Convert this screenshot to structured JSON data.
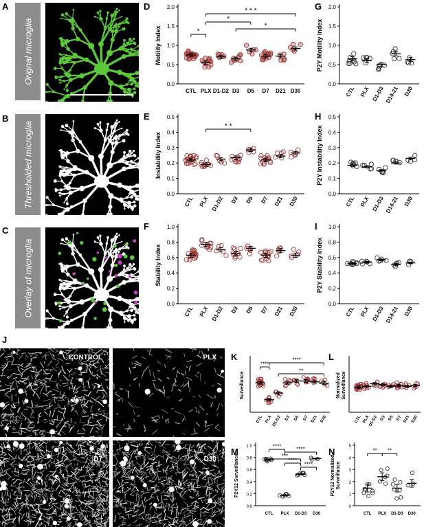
{
  "panel_labels": {
    "A": "A",
    "B": "B",
    "C": "C",
    "D": "D",
    "E": "E",
    "F": "F",
    "G": "G",
    "H": "H",
    "I": "I",
    "J": "J",
    "K": "K",
    "L": "L",
    "M": "M",
    "N": "N"
  },
  "image_panels": {
    "a_caption": "Orignal microglia",
    "b_caption": "Thresholded microglia",
    "c_caption": "Overlay of microglia",
    "colors": {
      "original": "#5cc93c",
      "thresholded": "#ffffff",
      "overlay_magenta": "#c040c0"
    }
  },
  "micrograph_labels": {
    "control": "CONTROL",
    "plx": "PLX",
    "d7": "D7",
    "d30": "D30"
  },
  "chart_data": [
    {
      "id": "D",
      "type": "scatter",
      "ylabel": "Motility Index",
      "ylim": [
        0,
        2.0
      ],
      "yticks": [
        0,
        0.5,
        1.0,
        1.5,
        2.0
      ],
      "tick_decimals": 1,
      "categories": [
        "CTL",
        "PLX",
        "D1-D2",
        "D3",
        "D5",
        "D7",
        "D21",
        "D30"
      ],
      "means": [
        0.75,
        0.55,
        0.7,
        0.65,
        0.88,
        0.72,
        0.72,
        0.92
      ],
      "point_color": "#a03c3c",
      "filled": true,
      "sig": [
        {
          "a": 0,
          "b": 1,
          "label": "*"
        },
        {
          "a": 1,
          "b": 7,
          "label": "* * *"
        },
        {
          "a": 1,
          "b": 4,
          "label": "*"
        },
        {
          "a": 3,
          "b": 7,
          "label": "*"
        }
      ]
    },
    {
      "id": "E",
      "type": "scatter",
      "ylabel": "Instability Index",
      "ylim": [
        0,
        0.5
      ],
      "yticks": [
        0,
        0.1,
        0.2,
        0.3,
        0.4,
        0.5
      ],
      "tick_decimals": 1,
      "categories": [
        "CTL",
        "PLX",
        "D1-D2",
        "D3",
        "D5",
        "D7",
        "D21",
        "D30"
      ],
      "means": [
        0.22,
        0.19,
        0.225,
        0.235,
        0.285,
        0.22,
        0.245,
        0.265
      ],
      "point_color": "#a03c3c",
      "filled": false,
      "sig": [
        {
          "a": 1,
          "b": 4,
          "label": "* *"
        }
      ]
    },
    {
      "id": "F",
      "type": "scatter",
      "ylabel": "Stability Index",
      "ylim": [
        0,
        1.0
      ],
      "yticks": [
        0,
        0.2,
        0.4,
        0.6,
        0.8,
        1.0
      ],
      "tick_decimals": 1,
      "categories": [
        "CTL",
        "PLX",
        "D1-D2",
        "D3",
        "D5",
        "D7",
        "D21",
        "D30"
      ],
      "means": [
        0.63,
        0.77,
        0.7,
        0.65,
        0.72,
        0.63,
        0.69,
        0.63
      ],
      "point_color": "#a03c3c",
      "filled": false,
      "sig": []
    },
    {
      "id": "G",
      "type": "scatter",
      "ylabel": "P2Y Motility Index",
      "ylim": [
        0,
        2.0
      ],
      "yticks": [
        0,
        0.5,
        1.0,
        1.5,
        2.0
      ],
      "tick_decimals": 1,
      "categories": [
        "CTL",
        "PLX",
        "D1-D3",
        "D14-21",
        "D30"
      ],
      "means": [
        0.65,
        0.6,
        0.5,
        0.78,
        0.63
      ],
      "point_color": "#333333",
      "filled": false,
      "sig": []
    },
    {
      "id": "H",
      "type": "scatter",
      "ylabel": "P2Y Instability Index",
      "ylim": [
        0,
        0.5
      ],
      "yticks": [
        0,
        0.1,
        0.2,
        0.3,
        0.4,
        0.5
      ],
      "tick_decimals": 1,
      "categories": [
        "CTL",
        "PLX",
        "D1-D3",
        "D14-21",
        "D30"
      ],
      "means": [
        0.185,
        0.175,
        0.15,
        0.2,
        0.23
      ],
      "point_color": "#333333",
      "filled": false,
      "sig": []
    },
    {
      "id": "I",
      "type": "scatter",
      "ylabel": "P2Y Stability Index",
      "ylim": [
        0,
        1.0
      ],
      "yticks": [
        0,
        0.2,
        0.4,
        0.6,
        0.8,
        1.0
      ],
      "tick_decimals": 1,
      "categories": [
        "CTL",
        "PLX",
        "D1-D3",
        "D14-21",
        "D30"
      ],
      "means": [
        0.52,
        0.54,
        0.57,
        0.51,
        0.53
      ],
      "point_color": "#333333",
      "filled": false,
      "sig": []
    },
    {
      "id": "K",
      "type": "scatter",
      "ylabel": "Surveillance",
      "ylim": [
        0,
        1.2
      ],
      "yticks": [],
      "tick_decimals": 1,
      "categories": [
        "CTL",
        "PLX",
        "D1-D2",
        "D3",
        "D5",
        "D7",
        "D21",
        "D30"
      ],
      "means": [
        0.66,
        0.28,
        0.43,
        0.66,
        0.7,
        0.7,
        0.68,
        0.65
      ],
      "point_color": "#a03c3c",
      "filled": false,
      "sig": [
        {
          "a": 0,
          "b": 1,
          "label": "****"
        },
        {
          "a": 1,
          "b": 7,
          "label": "****"
        },
        {
          "a": 2,
          "b": 7,
          "label": "**"
        }
      ]
    },
    {
      "id": "L",
      "type": "scatter",
      "ylabel": "Normalized Surveillance",
      "ylim": [
        0,
        3.0
      ],
      "yticks": [],
      "tick_decimals": 1,
      "categories": [
        "CTL",
        "PLX",
        "D1-D2",
        "D3",
        "D5",
        "D7",
        "D21",
        "D30"
      ],
      "means": [
        1.4,
        1.45,
        1.6,
        1.55,
        1.45,
        1.5,
        1.45,
        1.5
      ],
      "point_color": "#a03c3c",
      "filled": false,
      "sig": []
    },
    {
      "id": "M",
      "type": "scatter",
      "ylabel": "P2Y12 Surveillance",
      "ylim": [
        0,
        1.0
      ],
      "yticks": [
        0.0,
        0.2,
        0.4,
        0.6,
        0.8,
        1.0
      ],
      "tick_decimals": 1,
      "categories": [
        "CTL",
        "PLX",
        "D1-D3",
        "D30"
      ],
      "means": [
        0.76,
        0.17,
        0.52,
        0.78
      ],
      "point_color": "#333333",
      "filled": false,
      "sig": [
        {
          "a": 0,
          "b": 1,
          "label": "****"
        },
        {
          "a": 1,
          "b": 3,
          "label": "****"
        },
        {
          "a": 0,
          "b": 2,
          "label": "***"
        },
        {
          "a": 1,
          "b": 2,
          "label": "****"
        },
        {
          "a": 2,
          "b": 3,
          "label": "****"
        }
      ]
    },
    {
      "id": "N",
      "type": "scatter",
      "ylabel": "P2Y12 Normalized Surveillance",
      "ylim": [
        0,
        5
      ],
      "yticks": [
        0,
        1,
        2,
        3,
        4,
        5
      ],
      "tick_decimals": 0,
      "categories": [
        "CTL",
        "PLX",
        "D1-D3",
        "D30"
      ],
      "means": [
        1.45,
        2.4,
        1.45,
        1.85
      ],
      "point_color": "#333333",
      "filled": false,
      "sig": [
        {
          "a": 0,
          "b": 1,
          "label": "**"
        },
        {
          "a": 1,
          "b": 2,
          "label": "**"
        }
      ]
    }
  ]
}
